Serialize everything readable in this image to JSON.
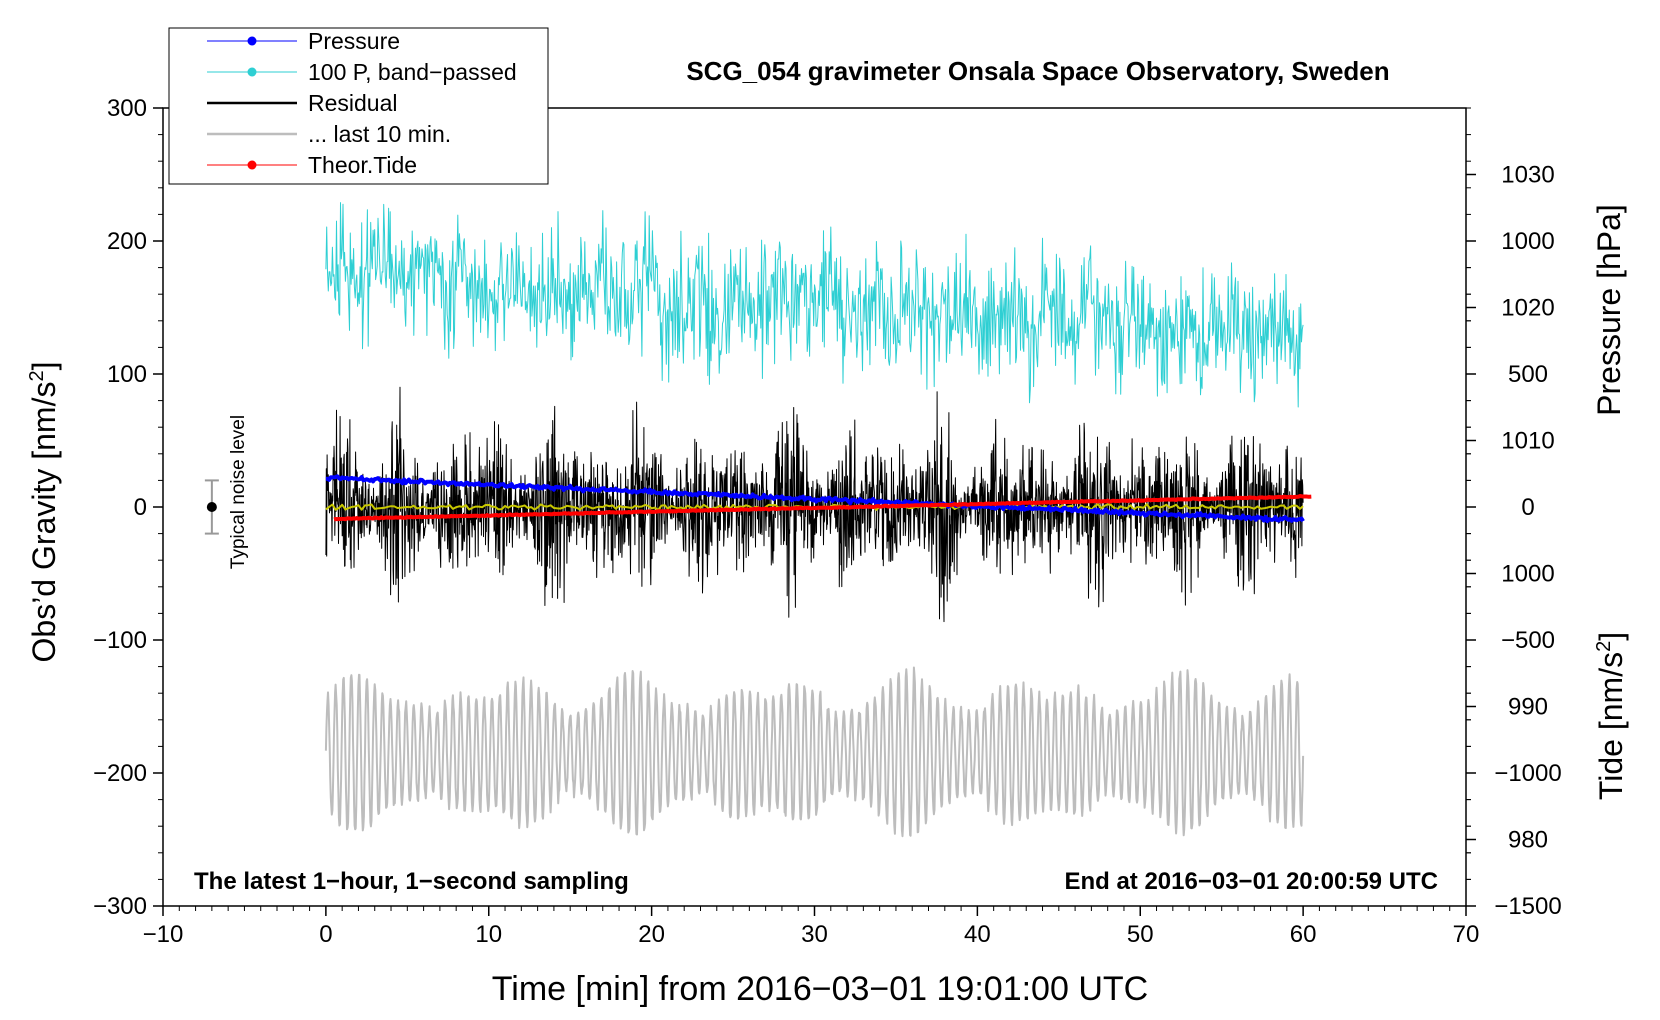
{
  "chart_data": {
    "type": "line",
    "title": "SCG_054 gravimeter Onsala Space Observatory, Sweden",
    "xlabel": "Time [min] from 2016−03−01 19:01:00 UTC",
    "ylabel": "Obs’d Gravity [nm/s²]",
    "ylabel_main": "Obs’d Gravity [nm/s",
    "ylabel_sup": "2",
    "ylabel_end": "]",
    "y2label": "Pressure [hPa]",
    "y3label": "Tide [nm/s²]",
    "y3label_main": "Tide [nm/s",
    "y3label_sup": "2",
    "y3label_end": "]",
    "xlim": [
      -10,
      70
    ],
    "ylim": [
      -300,
      300
    ],
    "y2lim": [
      975,
      1035
    ],
    "y3lim": [
      -1500,
      1500
    ],
    "x_ticks": [
      "−10",
      "0",
      "10",
      "20",
      "30",
      "40",
      "50",
      "60",
      "70"
    ],
    "x_tick_values": [
      -10,
      0,
      10,
      20,
      30,
      40,
      50,
      60,
      70
    ],
    "y_ticks": [
      "−300",
      "−200",
      "−100",
      "0",
      "100",
      "200",
      "300"
    ],
    "y_tick_values": [
      -300,
      -200,
      -100,
      0,
      100,
      200,
      300
    ],
    "y2_ticks": [
      "980",
      "990",
      "1000",
      "1010",
      "1020",
      "1030"
    ],
    "y2_tick_values": [
      980,
      990,
      1000,
      1010,
      1020,
      1030
    ],
    "y3_ticks": [
      "−1500",
      "−1000",
      "−500",
      "0",
      "500",
      "1000"
    ],
    "y3_tick_values": [
      -1500,
      -1000,
      -500,
      0,
      500,
      1000
    ],
    "legend": [
      {
        "label": "Pressure",
        "color": "#0000ff",
        "marker": true
      },
      {
        "label": "100 P, band−passed",
        "color": "#2ecfd3",
        "marker": true
      },
      {
        "label": "Residual",
        "color": "#000000",
        "marker": false
      },
      {
        "label": "... last 10 min.",
        "color": "#bdbdbd",
        "marker": false
      },
      {
        "label": "Theor.Tide",
        "color": "#ff0000",
        "marker": true
      }
    ],
    "legend_position": "top-left",
    "annotations": {
      "bottom_left": "The latest 1−hour, 1−second sampling",
      "bottom_right": "End at 2016−03−01 20:00:59 UTC",
      "noise_label": "Typical noise level"
    },
    "noise_bar": {
      "x": -7,
      "center": 0,
      "halfwidth": 20
    },
    "series": [
      {
        "name": "Pressure",
        "axis": "pressure",
        "color": "#0000ff",
        "x_start": 0,
        "x_end": 60,
        "y_start": 1007.2,
        "y_end": 1004.0
      },
      {
        "name": "100 P, band−passed",
        "axis": "gravity",
        "color": "#2ecfd3",
        "x_start": 0,
        "x_end": 60,
        "center_start": 175,
        "center_end": 130,
        "amplitude": 35
      },
      {
        "name": "Residual",
        "axis": "gravity",
        "color": "#000000",
        "x_start": 0,
        "x_end": 60,
        "center": 0,
        "amplitude": 28,
        "max_excursion": 90
      },
      {
        "name": "Residual smoothed",
        "axis": "gravity",
        "color": "#c8c800",
        "x_start": 0,
        "x_end": 60,
        "center": 0,
        "amplitude": 2
      },
      {
        "name": "... last 10 min.",
        "axis": "gravity",
        "color": "#bdbdbd",
        "x_start": 0,
        "x_end": 60,
        "center": -185,
        "amplitude": 45
      },
      {
        "name": "Theor.Tide",
        "axis": "tide",
        "color": "#ff0000",
        "x_start": 0.5,
        "x_end": 60.5,
        "y_start": -45,
        "y_end": 40
      }
    ]
  }
}
